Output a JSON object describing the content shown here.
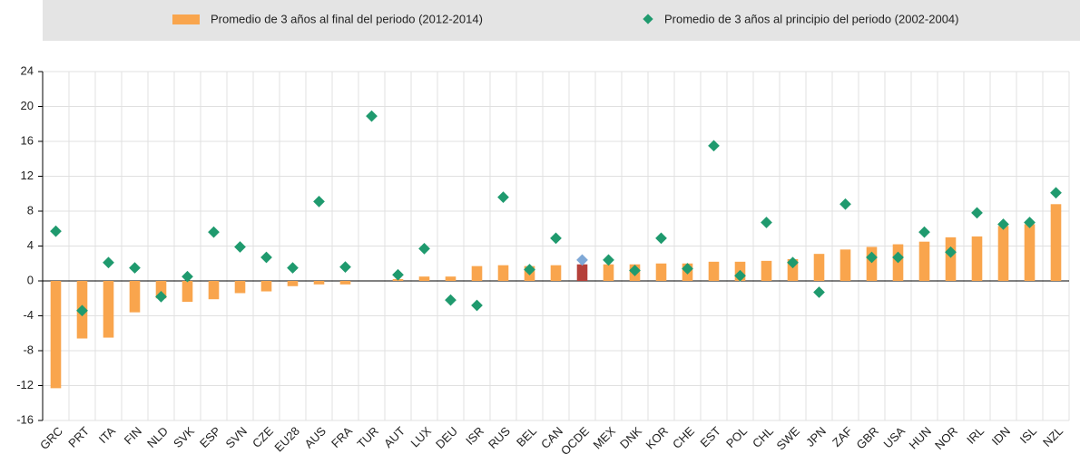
{
  "chart_data": {
    "type": "bar",
    "categories": [
      "GRC",
      "PRT",
      "ITA",
      "FIN",
      "NLD",
      "SVK",
      "ESP",
      "SVN",
      "CZE",
      "EU28",
      "AUS",
      "FRA",
      "TUR",
      "AUT",
      "LUX",
      "DEU",
      "ISR",
      "RUS",
      "BEL",
      "CAN",
      "OCDE",
      "MEX",
      "DNK",
      "KOR",
      "CHE",
      "EST",
      "POL",
      "CHL",
      "SWE",
      "JPN",
      "ZAF",
      "GBR",
      "USA",
      "HUN",
      "NOR",
      "IRL",
      "IDN",
      "ISL",
      "NZL"
    ],
    "series": [
      {
        "name": "Promedio de 3 años al final del periodo (2012-2014)",
        "type": "bar",
        "color": "#f9a54d",
        "values": [
          -12.3,
          -6.6,
          -6.5,
          -3.6,
          -2.0,
          -2.4,
          -2.1,
          -1.4,
          -1.2,
          -0.6,
          -0.4,
          -0.4,
          0,
          0.2,
          0.5,
          0.5,
          1.7,
          1.8,
          1.7,
          1.8,
          1.9,
          1.9,
          1.9,
          2.0,
          2.0,
          2.2,
          2.2,
          2.3,
          2.5,
          3.1,
          3.6,
          3.9,
          4.2,
          4.5,
          5.0,
          5.1,
          6.3,
          6.5,
          8.8
        ]
      },
      {
        "name": "Promedio de 3 años al principio del periodo (2002-2004)",
        "type": "scatter",
        "color": "#1f9a6e",
        "values": [
          5.7,
          -3.4,
          2.1,
          1.5,
          -1.8,
          0.5,
          5.6,
          3.9,
          2.7,
          1.5,
          9.1,
          1.6,
          18.9,
          0.7,
          3.7,
          -2.2,
          -2.8,
          9.6,
          1.3,
          4.9,
          2.4,
          2.4,
          1.2,
          4.9,
          1.4,
          15.5,
          0.6,
          6.7,
          2.1,
          -1.3,
          8.8,
          2.7,
          2.7,
          5.6,
          3.3,
          7.8,
          6.5,
          6.7,
          10.1
        ]
      }
    ],
    "highlight": {
      "category": "OCDE",
      "colors": [
        "#b5403a",
        "#7fa8d6"
      ]
    },
    "ylim": [
      -16,
      24
    ],
    "yticks": [
      -16,
      -12,
      -8,
      -4,
      0,
      4,
      8,
      12,
      16,
      20,
      24
    ],
    "grid": true
  }
}
